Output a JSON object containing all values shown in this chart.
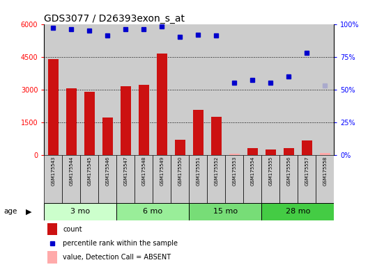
{
  "title": "GDS3077 / D26393exon_s_at",
  "samples": [
    "GSM175543",
    "GSM175544",
    "GSM175545",
    "GSM175546",
    "GSM175547",
    "GSM175548",
    "GSM175549",
    "GSM175550",
    "GSM175551",
    "GSM175552",
    "GSM175553",
    "GSM175554",
    "GSM175555",
    "GSM175556",
    "GSM175557",
    "GSM175558"
  ],
  "count_values": [
    4400,
    3050,
    2900,
    1700,
    3150,
    3200,
    4650,
    700,
    2050,
    1750,
    50,
    300,
    250,
    300,
    650,
    80
  ],
  "count_absent": [
    false,
    false,
    false,
    false,
    false,
    false,
    false,
    false,
    false,
    false,
    true,
    false,
    false,
    false,
    false,
    true
  ],
  "percentile_values": [
    97,
    96,
    95,
    91,
    96,
    96,
    98,
    90,
    92,
    91,
    55,
    57,
    55,
    60,
    78,
    53
  ],
  "percentile_absent": [
    false,
    false,
    false,
    false,
    false,
    false,
    false,
    false,
    false,
    false,
    false,
    false,
    false,
    false,
    false,
    true
  ],
  "age_groups": [
    {
      "label": "3 mo",
      "start": 0,
      "end": 4,
      "color": "#ccffcc"
    },
    {
      "label": "6 mo",
      "start": 4,
      "end": 8,
      "color": "#99ee99"
    },
    {
      "label": "15 mo",
      "start": 8,
      "end": 12,
      "color": "#77dd77"
    },
    {
      "label": "28 mo",
      "start": 12,
      "end": 16,
      "color": "#44cc44"
    }
  ],
  "ylim_left": [
    0,
    6000
  ],
  "ylim_right": [
    0,
    100
  ],
  "yticks_left": [
    0,
    1500,
    3000,
    4500,
    6000
  ],
  "yticks_right": [
    0,
    25,
    50,
    75,
    100
  ],
  "bar_color_present": "#cc1111",
  "bar_color_absent": "#ffaaaa",
  "dot_color_present": "#0000cc",
  "dot_color_absent": "#aaaacc",
  "bg_color": "#cccccc",
  "plot_bg": "#ffffff"
}
